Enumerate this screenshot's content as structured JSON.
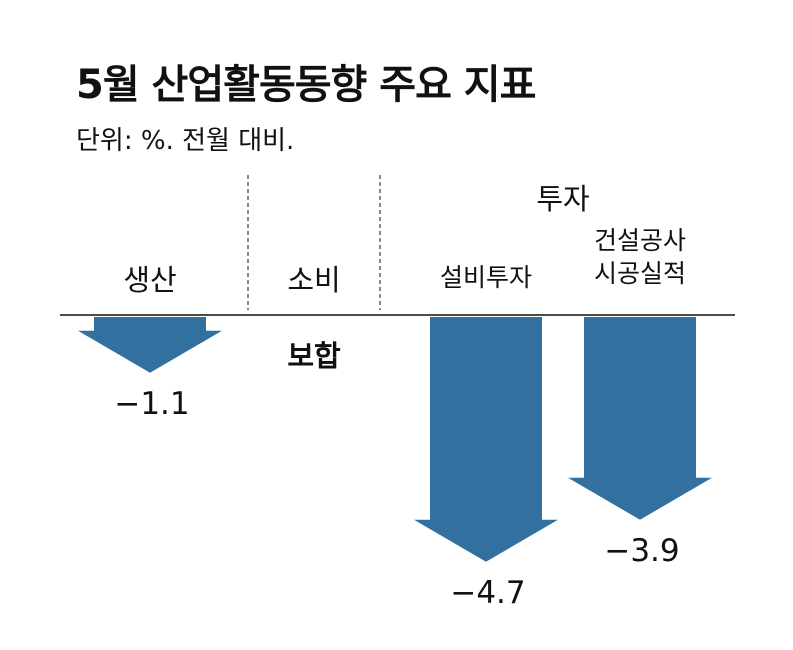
{
  "chart_data": {
    "type": "bar",
    "title": "5월 산업활동동향 주요 지표",
    "subtitle": "단위: %. 전월 대비.",
    "group_label": "투자",
    "categories": [
      "생산",
      "소비",
      "설비투자",
      "건설공사 시공실적"
    ],
    "category_lines": [
      [
        "생산"
      ],
      [
        "소비"
      ],
      [
        "설비투자"
      ],
      [
        "건설공사",
        "시공실적"
      ]
    ],
    "values": [
      -1.1,
      0,
      -4.7,
      -3.9
    ],
    "value_labels": [
      "−1.1",
      "보합",
      "−4.7",
      "−3.9"
    ],
    "color": "#31709f"
  }
}
